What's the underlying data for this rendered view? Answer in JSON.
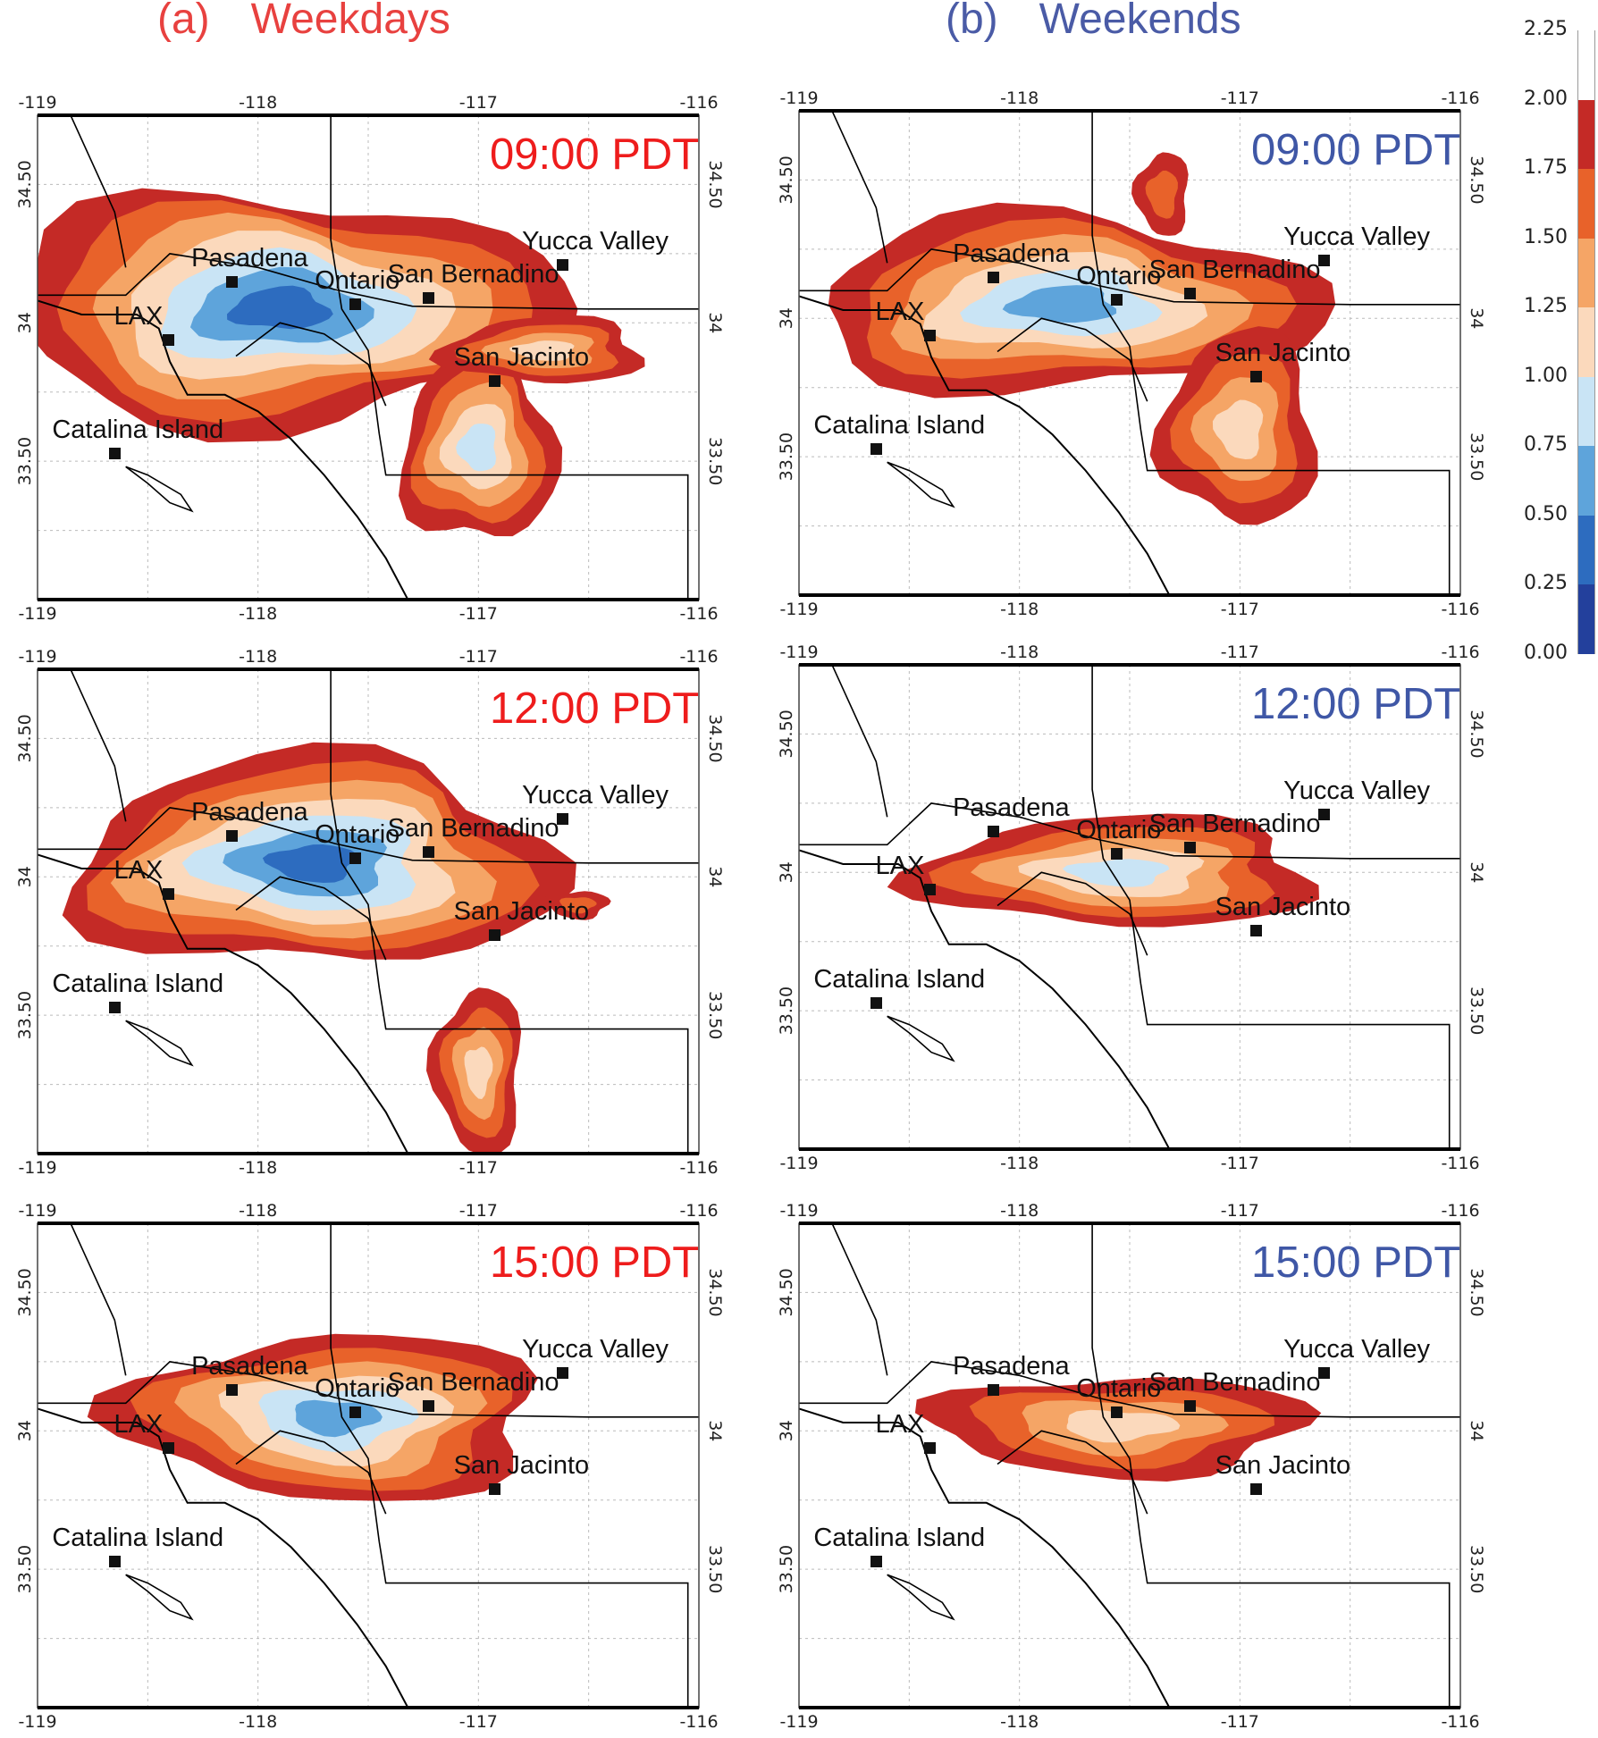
{
  "figure": {
    "columns": [
      {
        "tag": "(a)",
        "title": "Weekdays"
      },
      {
        "tag": "(b)",
        "title": "Weekends"
      }
    ],
    "map_extent": {
      "lon": [
        -119,
        -116
      ],
      "lat": [
        33.0,
        34.75
      ]
    },
    "lon_ticks_top": [
      "-119",
      "-118",
      "-117",
      "-116"
    ],
    "lon_ticks_bottom": [
      "-119",
      "-118",
      "-117",
      "-116"
    ],
    "lat_ticks_left": [
      "34.50",
      "34",
      "33.50"
    ],
    "lat_ticks_right": [
      "34.50",
      "34",
      "33.50"
    ],
    "cities": [
      {
        "name": "Pasadena",
        "lon": -118.12,
        "lat": 34.15
      },
      {
        "name": "LAX",
        "lon": -118.41,
        "lat": 33.94
      },
      {
        "name": "Ontario",
        "lon": -117.56,
        "lat": 34.07
      },
      {
        "name": "San Bernadino",
        "lon": -117.23,
        "lat": 34.09
      },
      {
        "name": "Yucca Valley",
        "lon": -116.62,
        "lat": 34.21
      },
      {
        "name": "San Jacinto",
        "lon": -116.93,
        "lat": 33.79
      },
      {
        "name": "Catalina Island",
        "lon": -118.65,
        "lat": 33.53
      }
    ],
    "colorbar": {
      "labels": [
        "2.25",
        "2.00",
        "1.75",
        "1.50",
        "1.25",
        "1.00",
        "0.75",
        "0.50",
        "0.25",
        "0.00"
      ],
      "colors": [
        "#ffffff",
        "#c42a26",
        "#e8622a",
        "#f5a566",
        "#fbd9bc",
        "#c9e4f5",
        "#5ea4db",
        "#2d6cbf",
        "#23409c"
      ]
    }
  },
  "panels": [
    {
      "id": "a1",
      "column": "Weekdays",
      "time": "09:00 PDT"
    },
    {
      "id": "b1",
      "column": "Weekends",
      "time": "09:00 PDT"
    },
    {
      "id": "a2",
      "column": "Weekdays",
      "time": "12:00 PDT"
    },
    {
      "id": "b2",
      "column": "Weekends",
      "time": "12:00 PDT"
    },
    {
      "id": "a3",
      "column": "Weekdays",
      "time": "15:00 PDT"
    },
    {
      "id": "b3",
      "column": "Weekends",
      "time": "15:00 PDT"
    }
  ]
}
